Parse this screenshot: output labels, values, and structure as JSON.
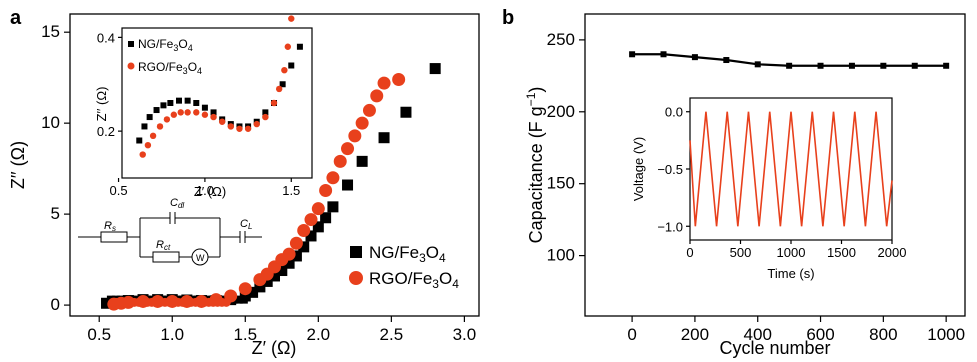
{
  "panels": {
    "a": "a",
    "b": "b"
  },
  "colors": {
    "ng": "#000000",
    "rgo": "#e8401c",
    "cycle": "#000000",
    "voltage": "#e8401c"
  },
  "chart_data": [
    {
      "id": "a",
      "type": "scatter",
      "xlabel": "Z′ (Ω)",
      "ylabel": "Z′′ (Ω)",
      "xlim": [
        0.3,
        3.1
      ],
      "ylim": [
        -0.6,
        16
      ],
      "xticks": [
        "0.5",
        "1.0",
        "1.5",
        "2.0",
        "2.5",
        "3.0"
      ],
      "yticks": [
        "0",
        "5",
        "10",
        "15"
      ],
      "legend_position": "bottom-right",
      "series": [
        {
          "name": "NG/Fe3O4",
          "marker": "square",
          "color": "#000000",
          "x": [
            0.55,
            0.62,
            0.7,
            0.8,
            0.9,
            1.0,
            1.1,
            1.2,
            1.3,
            1.4,
            1.5,
            1.55,
            1.6,
            1.65,
            1.7,
            1.75,
            1.8,
            1.85,
            1.9,
            1.95,
            2.0,
            2.05,
            2.1,
            2.2,
            2.3,
            2.45,
            2.6,
            2.8
          ],
          "y": [
            0.1,
            0.2,
            0.25,
            0.3,
            0.3,
            0.3,
            0.28,
            0.25,
            0.25,
            0.3,
            0.5,
            0.7,
            1.0,
            1.3,
            1.6,
            1.9,
            2.3,
            2.7,
            3.2,
            3.8,
            4.3,
            4.8,
            5.4,
            6.6,
            7.9,
            9.2,
            10.6,
            13.0
          ]
        },
        {
          "name": "RGO/Fe3O4",
          "marker": "circle",
          "color": "#e8401c",
          "x": [
            0.6,
            0.65,
            0.7,
            0.8,
            0.9,
            1.0,
            1.1,
            1.2,
            1.3,
            1.4,
            1.5,
            1.6,
            1.65,
            1.7,
            1.75,
            1.8,
            1.85,
            1.9,
            1.95,
            2.0,
            2.05,
            2.1,
            2.15,
            2.2,
            2.25,
            2.3,
            2.35,
            2.4,
            2.45,
            2.55
          ],
          "y": [
            0.05,
            0.1,
            0.15,
            0.2,
            0.2,
            0.2,
            0.2,
            0.2,
            0.3,
            0.5,
            0.9,
            1.4,
            1.7,
            2.1,
            2.5,
            2.8,
            3.4,
            4.1,
            4.7,
            5.3,
            6.3,
            7.0,
            7.9,
            8.6,
            9.3,
            10.0,
            10.7,
            11.5,
            12.2,
            12.4
          ]
        }
      ],
      "inset": {
        "xlabel": "Z′ (Ω)",
        "ylabel": "Z′′ (Ω)",
        "xlim": [
          0.52,
          1.62
        ],
        "ylim": [
          0.1,
          0.42
        ],
        "xticks": [
          "0.5",
          "1.0",
          "1.5"
        ],
        "yticks": [
          "0.2",
          "0.4"
        ],
        "legend_position": "top-left",
        "ng": {
          "x": [
            0.62,
            0.65,
            0.68,
            0.72,
            0.76,
            0.8,
            0.85,
            0.9,
            0.95,
            1.0,
            1.05,
            1.1,
            1.15,
            1.2,
            1.25,
            1.3,
            1.35,
            1.4,
            1.45,
            1.5,
            1.55
          ],
          "y": [
            0.18,
            0.21,
            0.23,
            0.245,
            0.255,
            0.26,
            0.265,
            0.265,
            0.26,
            0.25,
            0.24,
            0.225,
            0.215,
            0.21,
            0.21,
            0.22,
            0.24,
            0.26,
            0.3,
            0.34,
            0.38
          ]
        },
        "rgo": {
          "x": [
            0.64,
            0.67,
            0.7,
            0.74,
            0.78,
            0.82,
            0.86,
            0.9,
            0.95,
            1.0,
            1.05,
            1.1,
            1.15,
            1.2,
            1.25,
            1.3,
            1.35,
            1.4,
            1.43,
            1.46,
            1.48,
            1.5
          ],
          "y": [
            0.15,
            0.17,
            0.19,
            0.21,
            0.225,
            0.235,
            0.24,
            0.24,
            0.24,
            0.235,
            0.23,
            0.22,
            0.21,
            0.205,
            0.205,
            0.215,
            0.23,
            0.26,
            0.29,
            0.33,
            0.38,
            0.44
          ]
        }
      },
      "circuit": {
        "labels": [
          "R_s",
          "C_dl",
          "C_L",
          "R_ct",
          "W"
        ]
      }
    },
    {
      "id": "b",
      "type": "line",
      "xlabel": "Cycle number",
      "ylabel": "Capacitance (F g⁻¹)",
      "xlim": [
        -150,
        1060
      ],
      "ylim": [
        58,
        268
      ],
      "xticks": [
        "0",
        "200",
        "400",
        "600",
        "800",
        "1000"
      ],
      "yticks": [
        "100",
        "150",
        "200",
        "250"
      ],
      "series": [
        {
          "name": "",
          "color": "#000000",
          "x": [
            0,
            100,
            200,
            300,
            400,
            500,
            600,
            700,
            800,
            900,
            1000
          ],
          "y": [
            240,
            240,
            238,
            236,
            233,
            232,
            232,
            232,
            232,
            232,
            232
          ]
        }
      ],
      "inset": {
        "type": "line",
        "xlabel": "Time (s)",
        "ylabel": "Voltage (V)",
        "xlim": [
          0,
          2000
        ],
        "ylim": [
          -1.12,
          0.12
        ],
        "xticks": [
          "0",
          "500",
          "1000",
          "1500",
          "2000"
        ],
        "yticks": [
          "0.0",
          "−0.5",
          "−1.0"
        ],
        "cycles": 9,
        "vmax": 0.0,
        "vmin": -1.0
      }
    }
  ]
}
